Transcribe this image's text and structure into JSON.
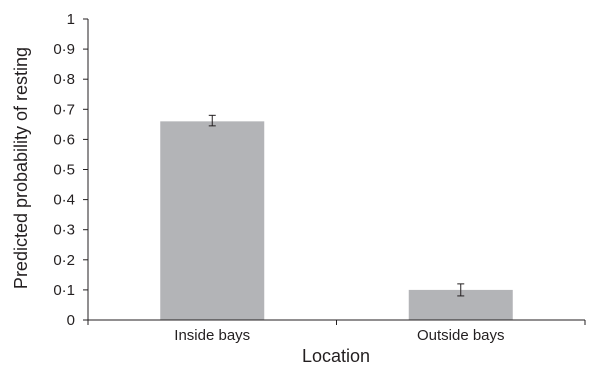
{
  "chart_data": {
    "type": "bar",
    "title": "",
    "xlabel": "Location",
    "ylabel": "Predicted probability of resting",
    "categories": [
      "Inside bays",
      "Outside bays"
    ],
    "values": [
      0.66,
      0.1
    ],
    "error_low": [
      0.645,
      0.08
    ],
    "error_high": [
      0.68,
      0.12
    ],
    "ylim": [
      0,
      1
    ],
    "yticks": [
      0,
      0.1,
      0.2,
      0.3,
      0.4,
      0.5,
      0.6,
      0.7,
      0.8,
      0.9,
      1
    ],
    "ytick_labels": [
      "0",
      "0·1",
      "0·2",
      "0·3",
      "0·4",
      "0·5",
      "0·6",
      "0·7",
      "0·8",
      "0·9",
      "1"
    ],
    "grid": false,
    "legend": "none",
    "bar_color": "#b3b4b7",
    "axis_color": "#231f20"
  }
}
